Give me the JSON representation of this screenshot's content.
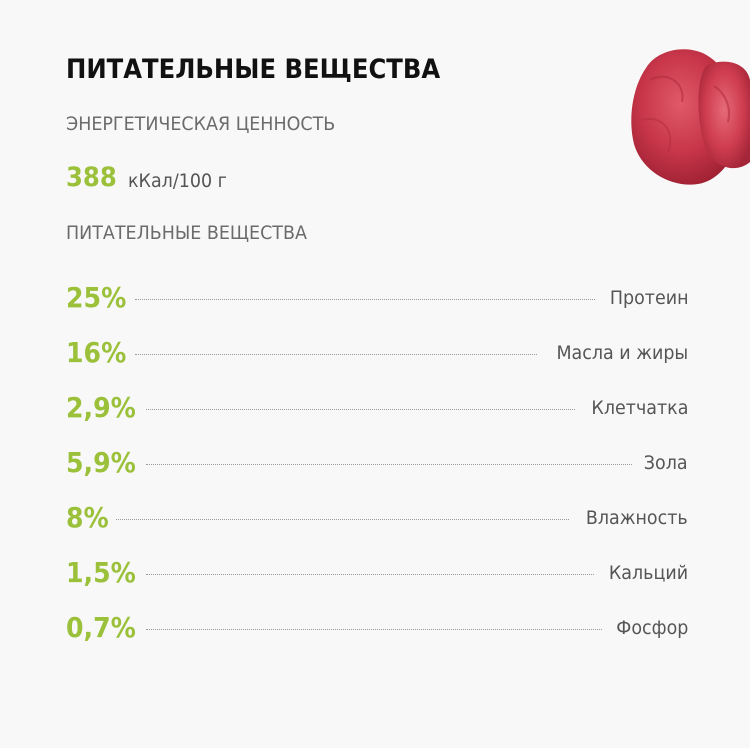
{
  "header": {
    "title": "ПИТАТЕЛЬНЫЕ ВЕЩЕСТВА"
  },
  "energy": {
    "label": "ЭНЕРГЕТИЧЕСКАЯ ЦЕННОСТЬ",
    "value": "388",
    "unit": "кКал/100 г"
  },
  "nutrients": {
    "label": "ПИТАТЕЛЬНЫЕ ВЕЩЕСТВА",
    "items": [
      {
        "percent": "25%",
        "name": "Протеин"
      },
      {
        "percent": "16%",
        "name": "Масла и жиры"
      },
      {
        "percent": "2,9%",
        "name": "Клетчатка"
      },
      {
        "percent": "5,9%",
        "name": "Зола"
      },
      {
        "percent": "8%",
        "name": "Влажность"
      },
      {
        "percent": "1,5%",
        "name": "Кальций"
      },
      {
        "percent": "0,7%",
        "name": "Фосфор"
      }
    ]
  },
  "image": {
    "icon": "raw-meat-icon"
  },
  "colors": {
    "accent": "#9bc03a",
    "title": "#111111",
    "muted": "#6b6b6b",
    "background": "#f8f8f8"
  }
}
